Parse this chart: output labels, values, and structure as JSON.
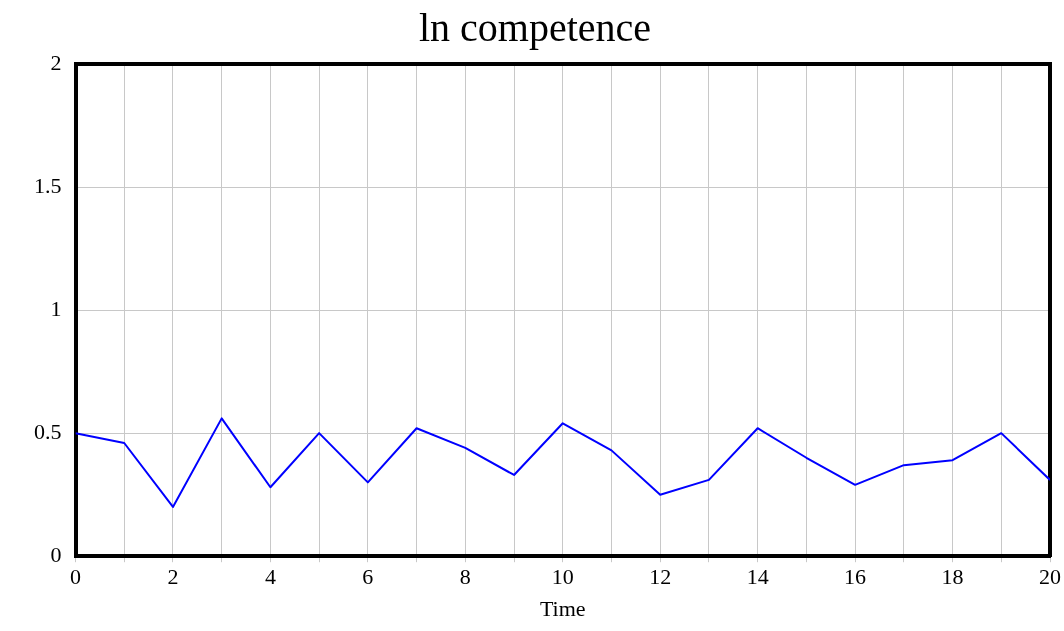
{
  "chart_data": {
    "type": "line",
    "title": "ln competence",
    "xlabel": "Time",
    "x": [
      0,
      1,
      2,
      3,
      4,
      5,
      6,
      7,
      8,
      9,
      10,
      11,
      12,
      13,
      14,
      15,
      16,
      17,
      18,
      19,
      20
    ],
    "series": [
      {
        "color": "#0000ff",
        "values": [
          0.5,
          0.46,
          0.2,
          0.56,
          0.28,
          0.5,
          0.3,
          0.52,
          0.44,
          0.33,
          0.54,
          0.43,
          0.25,
          0.31,
          0.52,
          0.4,
          0.29,
          0.37,
          0.39,
          0.5,
          0.31
        ]
      }
    ],
    "xlim": [
      0,
      20
    ],
    "xticks": [
      0,
      {
        "value": 1,
        "label": null
      },
      2,
      {
        "value": 3,
        "label": null
      },
      4,
      {
        "value": 5,
        "label": null
      },
      6,
      {
        "value": 7,
        "label": null
      },
      8,
      {
        "value": 9,
        "label": null
      },
      10,
      {
        "value": 11,
        "label": null
      },
      12,
      {
        "value": 13,
        "label": null
      },
      14,
      {
        "value": 15,
        "label": null
      },
      16,
      {
        "value": 17,
        "label": null
      },
      18,
      {
        "value": 19,
        "label": null
      },
      20
    ],
    "ylim": [
      0,
      2
    ],
    "yticks": [
      0,
      0.5,
      1,
      1.5,
      2
    ],
    "grid": true,
    "legend": false,
    "marker": "none",
    "line_style": "solid"
  }
}
